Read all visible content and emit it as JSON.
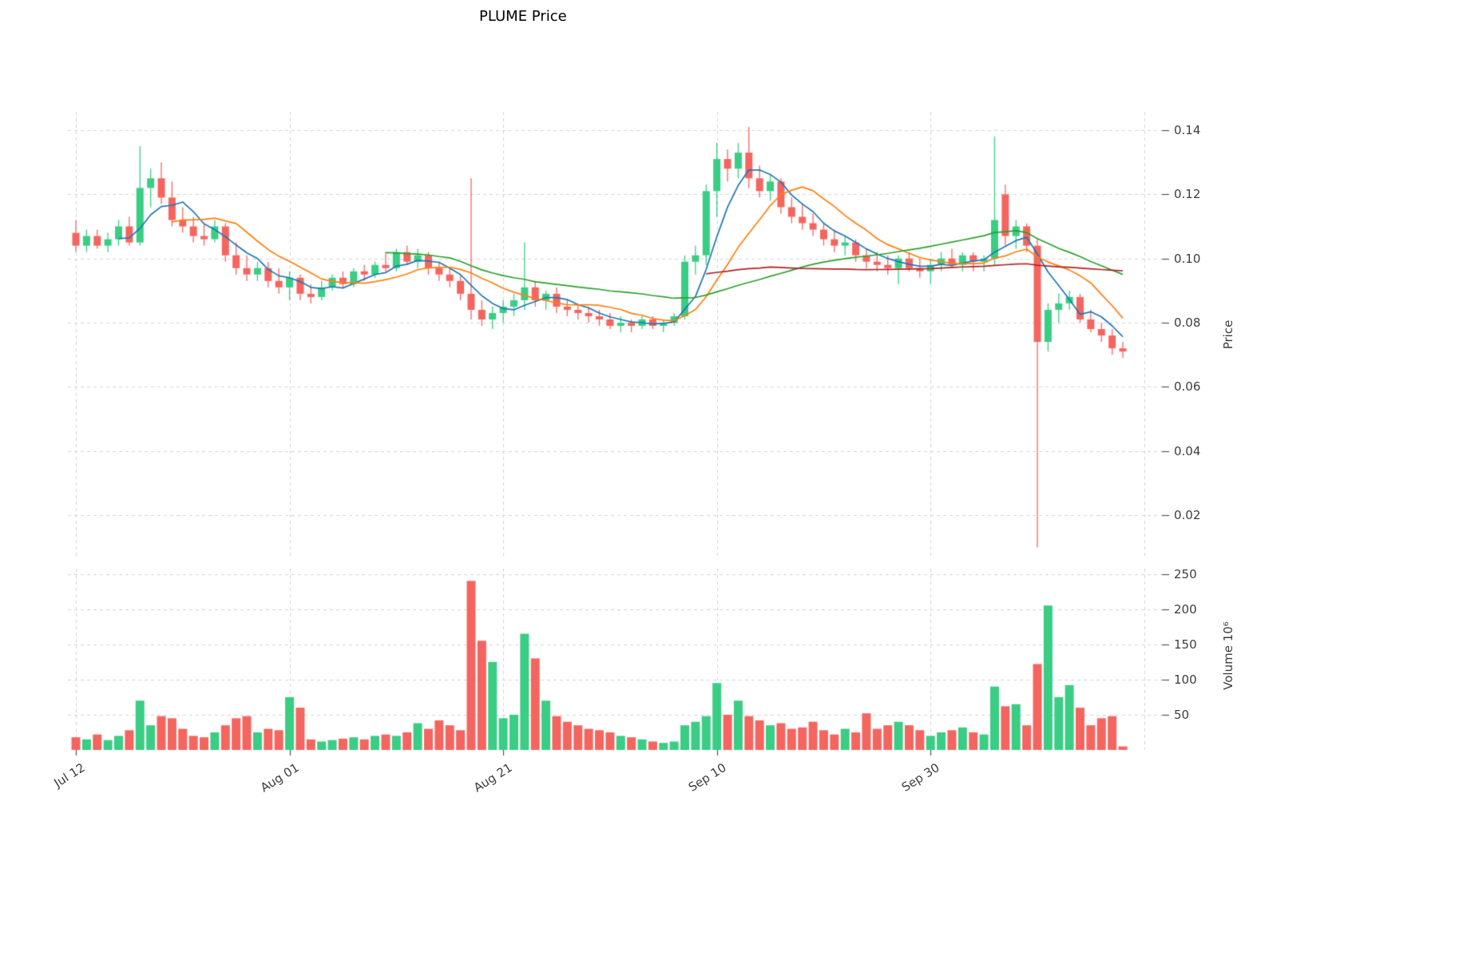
{
  "header": {
    "title": "PLUME Price"
  },
  "axes": {
    "price_label": "Price",
    "volume_label": "Volume  10⁶"
  },
  "chart_data": {
    "type": "candlestick",
    "title": "PLUME Price",
    "ylabel_price": "Price",
    "ylabel_volume": "Volume  10⁶",
    "legend": "none",
    "grid": "dashed",
    "price_ylim": [
      0.006,
      0.146
    ],
    "price_axis_ticks": [
      0.14,
      0.12,
      0.1,
      0.08,
      0.06,
      0.04,
      0.02
    ],
    "volume_axis_ticks_millions": [
      250,
      200,
      150,
      100,
      50
    ],
    "x_tick_labels": [
      "Jul 12",
      "Aug 01",
      "Aug 21",
      "Sep 10",
      "Sep 30"
    ],
    "x_tick_indices": [
      0,
      20,
      40,
      60,
      80
    ],
    "num_candles": 99,
    "date_start": "Jul 12",
    "date_end": "Oct 18",
    "colors": {
      "up": "#3ACD84",
      "down": "#F4655F",
      "ma_fast": "#1f77b4",
      "ma_mid": "#ff7f0e",
      "ma_slow": "#2ca02c",
      "ma_long": "#b22222",
      "grid": "#d3d3d3",
      "tick_text": "#3d3d3d"
    },
    "moving_averages": [
      {
        "period": 5,
        "color": "#1f77b4"
      },
      {
        "period": 10,
        "color": "#ff7f0e"
      },
      {
        "period": 30,
        "color": "#2ca02c"
      },
      {
        "period": 60,
        "color": "#b22222"
      }
    ],
    "open": [
      0.108,
      0.104,
      0.107,
      0.104,
      0.106,
      0.11,
      0.105,
      0.122,
      0.125,
      0.119,
      0.112,
      0.11,
      0.107,
      0.106,
      0.11,
      0.101,
      0.097,
      0.095,
      0.097,
      0.093,
      0.091,
      0.094,
      0.089,
      0.088,
      0.091,
      0.094,
      0.092,
      0.096,
      0.095,
      0.098,
      0.097,
      0.102,
      0.099,
      0.101,
      0.097,
      0.095,
      0.093,
      0.089,
      0.084,
      0.081,
      0.083,
      0.085,
      0.087,
      0.091,
      0.087,
      0.089,
      0.085,
      0.084,
      0.083,
      0.082,
      0.081,
      0.079,
      0.08,
      0.079,
      0.081,
      0.079,
      0.08,
      0.082,
      0.099,
      0.101,
      0.121,
      0.131,
      0.128,
      0.133,
      0.125,
      0.121,
      0.124,
      0.116,
      0.113,
      0.111,
      0.109,
      0.106,
      0.104,
      0.105,
      0.101,
      0.099,
      0.098,
      0.097,
      0.1,
      0.097,
      0.096,
      0.098,
      0.1,
      0.098,
      0.101,
      0.099,
      0.1,
      0.12,
      0.107,
      0.11,
      0.104,
      0.074,
      0.084,
      0.086,
      0.088,
      0.081,
      0.078,
      0.076,
      0.072
    ],
    "high": [
      0.112,
      0.109,
      0.109,
      0.108,
      0.112,
      0.113,
      0.135,
      0.128,
      0.13,
      0.124,
      0.116,
      0.113,
      0.111,
      0.112,
      0.111,
      0.105,
      0.101,
      0.099,
      0.099,
      0.097,
      0.096,
      0.095,
      0.092,
      0.093,
      0.095,
      0.096,
      0.097,
      0.098,
      0.099,
      0.102,
      0.103,
      0.104,
      0.103,
      0.102,
      0.099,
      0.097,
      0.095,
      0.125,
      0.087,
      0.085,
      0.087,
      0.089,
      0.105,
      0.093,
      0.09,
      0.091,
      0.087,
      0.086,
      0.085,
      0.084,
      0.083,
      0.082,
      0.081,
      0.082,
      0.082,
      0.081,
      0.083,
      0.101,
      0.104,
      0.123,
      0.136,
      0.134,
      0.136,
      0.141,
      0.129,
      0.126,
      0.125,
      0.119,
      0.117,
      0.114,
      0.111,
      0.109,
      0.107,
      0.106,
      0.103,
      0.102,
      0.101,
      0.101,
      0.102,
      0.1,
      0.1,
      0.102,
      0.103,
      0.102,
      0.102,
      0.101,
      0.138,
      0.123,
      0.112,
      0.111,
      0.106,
      0.086,
      0.089,
      0.09,
      0.089,
      0.084,
      0.08,
      0.078,
      0.074
    ],
    "low": [
      0.102,
      0.102,
      0.103,
      0.102,
      0.104,
      0.104,
      0.104,
      0.116,
      0.117,
      0.11,
      0.108,
      0.105,
      0.104,
      0.105,
      0.099,
      0.095,
      0.093,
      0.093,
      0.091,
      0.089,
      0.087,
      0.087,
      0.086,
      0.087,
      0.09,
      0.091,
      0.091,
      0.093,
      0.094,
      0.096,
      0.096,
      0.098,
      0.097,
      0.095,
      0.093,
      0.091,
      0.087,
      0.081,
      0.079,
      0.078,
      0.08,
      0.082,
      0.084,
      0.085,
      0.084,
      0.083,
      0.082,
      0.081,
      0.08,
      0.079,
      0.078,
      0.077,
      0.077,
      0.078,
      0.078,
      0.077,
      0.079,
      0.081,
      0.095,
      0.098,
      0.113,
      0.124,
      0.125,
      0.122,
      0.119,
      0.118,
      0.114,
      0.111,
      0.109,
      0.107,
      0.104,
      0.102,
      0.101,
      0.099,
      0.097,
      0.096,
      0.095,
      0.092,
      0.096,
      0.094,
      0.092,
      0.096,
      0.097,
      0.096,
      0.096,
      0.096,
      0.098,
      0.104,
      0.103,
      0.102,
      0.01,
      0.071,
      0.08,
      0.084,
      0.08,
      0.077,
      0.074,
      0.07,
      0.069
    ],
    "close": [
      0.104,
      0.107,
      0.104,
      0.106,
      0.11,
      0.105,
      0.122,
      0.125,
      0.119,
      0.112,
      0.11,
      0.107,
      0.106,
      0.11,
      0.101,
      0.097,
      0.095,
      0.097,
      0.093,
      0.091,
      0.094,
      0.089,
      0.088,
      0.091,
      0.094,
      0.092,
      0.096,
      0.095,
      0.098,
      0.097,
      0.102,
      0.099,
      0.101,
      0.097,
      0.095,
      0.093,
      0.089,
      0.084,
      0.081,
      0.083,
      0.085,
      0.087,
      0.091,
      0.087,
      0.089,
      0.085,
      0.084,
      0.083,
      0.082,
      0.081,
      0.079,
      0.08,
      0.079,
      0.081,
      0.079,
      0.08,
      0.082,
      0.099,
      0.101,
      0.121,
      0.131,
      0.128,
      0.133,
      0.125,
      0.121,
      0.124,
      0.116,
      0.113,
      0.111,
      0.109,
      0.106,
      0.104,
      0.105,
      0.101,
      0.099,
      0.098,
      0.097,
      0.1,
      0.097,
      0.096,
      0.098,
      0.1,
      0.098,
      0.101,
      0.099,
      0.1,
      0.112,
      0.107,
      0.11,
      0.104,
      0.074,
      0.084,
      0.086,
      0.088,
      0.081,
      0.078,
      0.076,
      0.072,
      0.071
    ],
    "volume_millions": [
      18,
      15,
      22,
      14,
      20,
      28,
      70,
      35,
      48,
      45,
      30,
      20,
      18,
      25,
      35,
      45,
      48,
      25,
      30,
      28,
      75,
      60,
      15,
      12,
      14,
      16,
      18,
      15,
      20,
      22,
      20,
      25,
      38,
      30,
      42,
      35,
      28,
      240,
      155,
      125,
      45,
      50,
      165,
      130,
      70,
      48,
      40,
      35,
      30,
      28,
      25,
      20,
      18,
      15,
      12,
      10,
      12,
      35,
      40,
      48,
      95,
      50,
      70,
      48,
      42,
      35,
      38,
      30,
      32,
      40,
      28,
      22,
      30,
      25,
      52,
      30,
      35,
      40,
      35,
      28,
      20,
      25,
      28,
      32,
      25,
      22,
      90,
      62,
      65,
      35,
      122,
      205,
      75,
      92,
      60,
      35,
      45,
      48,
      5
    ]
  }
}
